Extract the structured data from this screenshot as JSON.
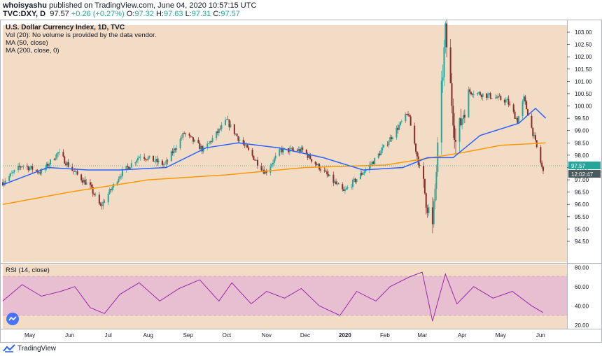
{
  "header": {
    "author": "whoisyashu",
    "published": "published on TradingView.com, June 04, 2020 10:57:15 UTC",
    "symbol": "TVC:DXY, D",
    "last": "97.57",
    "change": "+0.26 (+0.27%)",
    "o_label": "O:",
    "o_value": "97.32",
    "h_label": "H:",
    "h_value": "97.63",
    "l_label": "L:",
    "l_value": "97.31",
    "c_label": "C:",
    "c_value": "97.57"
  },
  "legend": {
    "title": "U.S. Dollar Currency Index, 1D, TVC",
    "volume": "Vol (20): No volume is provided by the data vendor.",
    "ma50": "MA (50, close)",
    "ma200": "MA (200, close, 0)",
    "rsi": "RSI (14, close)"
  },
  "footer": {
    "brand": "TradingView"
  },
  "colors": {
    "background": "#f3dcc6",
    "up": "#26a69a",
    "down": "#8b2a2a",
    "ma50": "#2962ff",
    "ma200": "#ff9800",
    "rsi_line": "#9c27b0",
    "rsi_band": "#e7bfd0",
    "last_price_tag": "#26a69a",
    "timer_tag": "#4a5a5c"
  },
  "price_scale": {
    "ticks": [
      "103.00",
      "102.50",
      "102.00",
      "101.50",
      "101.00",
      "100.50",
      "100.00",
      "99.50",
      "99.00",
      "98.50",
      "98.00",
      "97.50",
      "97.00",
      "96.50",
      "96.00",
      "95.50",
      "95.00",
      "94.50"
    ],
    "last_price": "97.57",
    "countdown": "12:02:47"
  },
  "rsi_scale": {
    "ticks": [
      "80.00",
      "60.00",
      "40.00",
      "20.00"
    ]
  },
  "time_axis": {
    "ticks": [
      "May",
      "Jun",
      "Jul",
      "Aug",
      "Sep",
      "Oct",
      "Nov",
      "Dec",
      "2020",
      "Feb",
      "Mar",
      "Apr",
      "May",
      "Jun"
    ]
  },
  "chart_data": [
    {
      "type": "candlestick",
      "title": "U.S. Dollar Currency Index, 1D, TVC",
      "ylim": [
        94.5,
        103.0
      ],
      "x": [
        "2019-04",
        "2019-05",
        "2019-06",
        "2019-07",
        "2019-08",
        "2019-09",
        "2019-10",
        "2019-11",
        "2019-12",
        "2020-01",
        "2020-02",
        "2020-03",
        "2020-04",
        "2020-05",
        "2020-06"
      ],
      "anchors": {
        "x": [
          "2019-04-10",
          "2019-04-25",
          "2019-05-10",
          "2019-05-23",
          "2019-06-03",
          "2019-06-17",
          "2019-06-25",
          "2019-07-10",
          "2019-07-26",
          "2019-08-14",
          "2019-08-29",
          "2019-09-13",
          "2019-10-01",
          "2019-10-10",
          "2019-10-31",
          "2019-11-12",
          "2019-11-29",
          "2019-12-31",
          "2020-01-24",
          "2020-02-19",
          "2020-03-09",
          "2020-03-19",
          "2020-03-27",
          "2020-04-06",
          "2020-04-23",
          "2020-05-06",
          "2020-05-14",
          "2020-05-19",
          "2020-06-03"
        ],
        "close": [
          96.9,
          97.6,
          97.3,
          98.1,
          97.4,
          96.7,
          95.9,
          97.2,
          98.0,
          97.6,
          98.9,
          98.2,
          99.4,
          98.7,
          97.3,
          98.2,
          98.2,
          96.5,
          97.8,
          99.7,
          95.0,
          103.0,
          98.5,
          100.6,
          100.4,
          100.2,
          99.4,
          100.3,
          97.3
        ]
      },
      "series": [
        {
          "name": "MA (50, close)",
          "x": [
            "2019-04-10",
            "2019-05-15",
            "2019-06-15",
            "2019-07-10",
            "2019-08-15",
            "2019-09-15",
            "2019-10-10",
            "2019-11-10",
            "2019-12-15",
            "2020-01-15",
            "2020-02-15",
            "2020-03-05",
            "2020-03-25",
            "2020-04-15",
            "2020-05-15",
            "2020-05-28",
            "2020-06-05"
          ],
          "values": [
            96.8,
            97.5,
            97.4,
            97.4,
            97.5,
            98.3,
            98.5,
            98.3,
            97.9,
            97.4,
            97.5,
            97.9,
            97.9,
            98.8,
            99.3,
            99.9,
            99.5
          ]
        },
        {
          "name": "MA (200, close, 0)",
          "x": [
            "2019-04-10",
            "2019-06-01",
            "2019-08-01",
            "2019-10-01",
            "2019-12-01",
            "2020-02-01",
            "2020-04-01",
            "2020-05-01",
            "2020-06-05"
          ],
          "values": [
            96.0,
            96.5,
            97.0,
            97.2,
            97.5,
            97.6,
            98.1,
            98.4,
            98.5
          ]
        }
      ]
    },
    {
      "type": "line",
      "title": "RSI (14, close)",
      "ylim": [
        20,
        80
      ],
      "bands": [
        30,
        70
      ],
      "x": [
        "2019-04-10",
        "2019-04-25",
        "2019-05-10",
        "2019-05-25",
        "2019-06-05",
        "2019-06-17",
        "2019-06-28",
        "2019-07-10",
        "2019-07-25",
        "2019-08-10",
        "2019-08-25",
        "2019-09-10",
        "2019-09-25",
        "2019-10-05",
        "2019-10-20",
        "2019-11-01",
        "2019-11-15",
        "2019-11-28",
        "2019-12-12",
        "2019-12-28",
        "2020-01-10",
        "2020-01-25",
        "2020-02-05",
        "2020-02-20",
        "2020-03-01",
        "2020-03-09",
        "2020-03-19",
        "2020-03-28",
        "2020-04-10",
        "2020-04-25",
        "2020-05-10",
        "2020-05-25",
        "2020-06-03"
      ],
      "values": [
        45,
        62,
        50,
        55,
        60,
        38,
        32,
        52,
        64,
        45,
        58,
        67,
        45,
        64,
        42,
        55,
        48,
        58,
        40,
        30,
        55,
        45,
        60,
        70,
        75,
        24,
        73,
        42,
        60,
        48,
        55,
        40,
        33
      ]
    }
  ]
}
